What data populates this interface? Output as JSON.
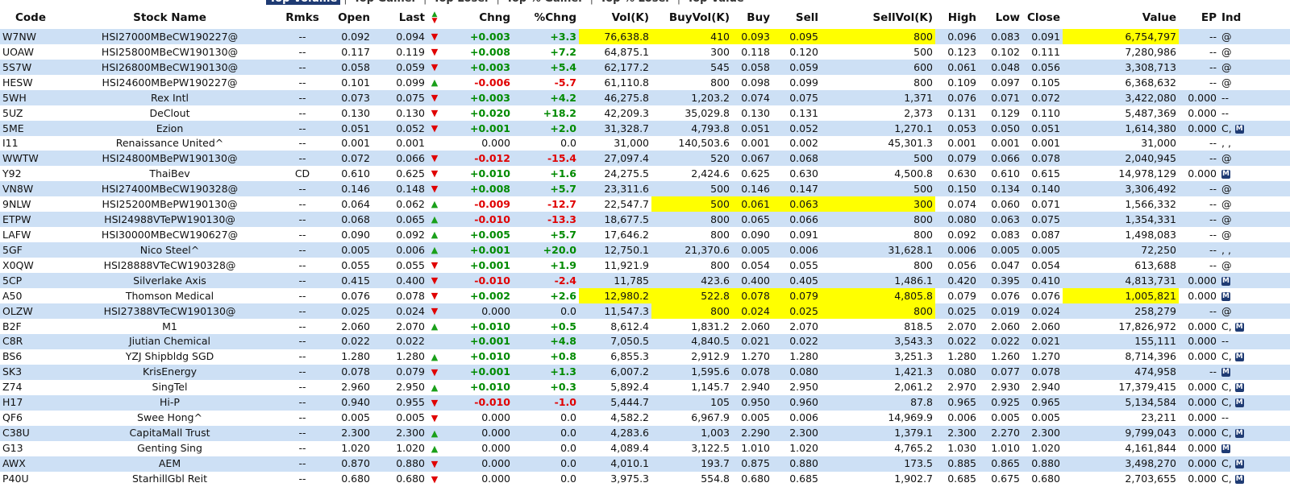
{
  "tabs": [
    "Top Volume",
    "Top Gainer",
    "Top Loser",
    "Top % Gainer",
    "Top % Loser",
    "Top Value"
  ],
  "table": {
    "headers": [
      "Code",
      "Stock Name",
      "Rmks",
      "Open",
      "Last",
      "Chng",
      "%Chng",
      "Vol(K)",
      "BuyVol(K)",
      "Buy",
      "Sell",
      "SellVol(K)",
      "High",
      "Low",
      "Close",
      "Value",
      "EP",
      "Ind"
    ],
    "rows": [
      [
        "W7NW",
        "HSI27000MBeCW190227@",
        "--",
        "0.092",
        "0.094",
        "+0.003",
        "+3.3",
        "76,638.8",
        "410",
        "0.093",
        "0.095",
        "800",
        "0.096",
        "0.083",
        "0.091",
        "6,754,797",
        "--",
        "@"
      ],
      [
        "UOAW",
        "HSI25800MBeCW190130@",
        "--",
        "0.117",
        "0.119",
        "+0.008",
        "+7.2",
        "64,875.1",
        "300",
        "0.118",
        "0.120",
        "500",
        "0.123",
        "0.102",
        "0.111",
        "7,280,986",
        "--",
        "@"
      ],
      [
        "5S7W",
        "HSI26800MBeCW190130@",
        "--",
        "0.058",
        "0.059",
        "+0.003",
        "+5.4",
        "62,177.2",
        "545",
        "0.058",
        "0.059",
        "600",
        "0.061",
        "0.048",
        "0.056",
        "3,308,713",
        "--",
        "@"
      ],
      [
        "HESW",
        "HSI24600MBePW190227@",
        "--",
        "0.101",
        "0.099",
        "-0.006",
        "-5.7",
        "61,110.8",
        "800",
        "0.098",
        "0.099",
        "800",
        "0.109",
        "0.097",
        "0.105",
        "6,368,632",
        "--",
        "@"
      ],
      [
        "5WH",
        "Rex Intl",
        "--",
        "0.073",
        "0.075",
        "+0.003",
        "+4.2",
        "46,275.8",
        "1,203.2",
        "0.074",
        "0.075",
        "1,371",
        "0.076",
        "0.071",
        "0.072",
        "3,422,080",
        "0.000",
        "--"
      ],
      [
        "5UZ",
        "DeClout",
        "--",
        "0.130",
        "0.130",
        "+0.020",
        "+18.2",
        "42,209.3",
        "35,029.8",
        "0.130",
        "0.131",
        "2,373",
        "0.131",
        "0.129",
        "0.110",
        "5,487,369",
        "0.000",
        "--"
      ],
      [
        "5ME",
        "Ezion",
        "--",
        "0.051",
        "0.052",
        "+0.001",
        "+2.0",
        "31,328.7",
        "4,793.8",
        "0.051",
        "0.052",
        "1,270.1",
        "0.053",
        "0.050",
        "0.051",
        "1,614,380",
        "0.000",
        "C, M"
      ],
      [
        "I11",
        "Renaissance United^",
        "--",
        "0.001",
        "0.001",
        "0.000",
        "0.0",
        "31,000",
        "140,503.6",
        "0.001",
        "0.002",
        "45,301.3",
        "0.001",
        "0.001",
        "0.001",
        "31,000",
        "--",
        ", ,"
      ],
      [
        "WWTW",
        "HSI24800MBePW190130@",
        "--",
        "0.072",
        "0.066",
        "-0.012",
        "-15.4",
        "27,097.4",
        "520",
        "0.067",
        "0.068",
        "500",
        "0.079",
        "0.066",
        "0.078",
        "2,040,945",
        "--",
        "@"
      ],
      [
        "Y92",
        "ThaiBev",
        "CD",
        "0.610",
        "0.625",
        "+0.010",
        "+1.6",
        "24,275.5",
        "2,424.6",
        "0.625",
        "0.630",
        "4,500.8",
        "0.630",
        "0.610",
        "0.615",
        "14,978,129",
        "0.000",
        "M"
      ],
      [
        "VN8W",
        "HSI27400MBeCW190328@",
        "--",
        "0.146",
        "0.148",
        "+0.008",
        "+5.7",
        "23,311.6",
        "500",
        "0.146",
        "0.147",
        "500",
        "0.150",
        "0.134",
        "0.140",
        "3,306,492",
        "--",
        "@"
      ],
      [
        "9NLW",
        "HSI25200MBePW190130@",
        "--",
        "0.064",
        "0.062",
        "-0.009",
        "-12.7",
        "22,547.7",
        "500",
        "0.061",
        "0.063",
        "300",
        "0.074",
        "0.060",
        "0.071",
        "1,566,332",
        "--",
        "@"
      ],
      [
        "ETPW",
        "HSI24988VTePW190130@",
        "--",
        "0.068",
        "0.065",
        "-0.010",
        "-13.3",
        "18,677.5",
        "800",
        "0.065",
        "0.066",
        "800",
        "0.080",
        "0.063",
        "0.075",
        "1,354,331",
        "--",
        "@"
      ],
      [
        "LAFW",
        "HSI30000MBeCW190627@",
        "--",
        "0.090",
        "0.092",
        "+0.005",
        "+5.7",
        "17,646.2",
        "800",
        "0.090",
        "0.091",
        "800",
        "0.092",
        "0.083",
        "0.087",
        "1,498,083",
        "--",
        "@"
      ],
      [
        "5GF",
        "Nico Steel^",
        "--",
        "0.005",
        "0.006",
        "+0.001",
        "+20.0",
        "12,750.1",
        "21,370.6",
        "0.005",
        "0.006",
        "31,628.1",
        "0.006",
        "0.005",
        "0.005",
        "72,250",
        "--",
        ", ,"
      ],
      [
        "X0QW",
        "HSI28888VTeCW190328@",
        "--",
        "0.055",
        "0.055",
        "+0.001",
        "+1.9",
        "11,921.9",
        "800",
        "0.054",
        "0.055",
        "800",
        "0.056",
        "0.047",
        "0.054",
        "613,688",
        "--",
        "@"
      ],
      [
        "5CP",
        "Silverlake Axis",
        "--",
        "0.415",
        "0.400",
        "-0.010",
        "-2.4",
        "11,785",
        "423.6",
        "0.400",
        "0.405",
        "1,486.1",
        "0.420",
        "0.395",
        "0.410",
        "4,813,731",
        "0.000",
        "M"
      ],
      [
        "A50",
        "Thomson Medical",
        "--",
        "0.076",
        "0.078",
        "+0.002",
        "+2.6",
        "12,980.2",
        "522.8",
        "0.078",
        "0.079",
        "4,805.8",
        "0.079",
        "0.076",
        "0.076",
        "1,005,821",
        "0.000",
        "M"
      ],
      [
        "OLZW",
        "HSI27388VTeCW190130@",
        "--",
        "0.025",
        "0.024",
        "0.000",
        "0.0",
        "11,547.3",
        "800",
        "0.024",
        "0.025",
        "800",
        "0.025",
        "0.019",
        "0.024",
        "258,279",
        "--",
        "@"
      ],
      [
        "B2F",
        "M1",
        "--",
        "2.060",
        "2.070",
        "+0.010",
        "+0.5",
        "8,612.4",
        "1,831.2",
        "2.060",
        "2.070",
        "818.5",
        "2.070",
        "2.060",
        "2.060",
        "17,826,972",
        "0.000",
        "C, M"
      ],
      [
        "C8R",
        "Jiutian Chemical",
        "--",
        "0.022",
        "0.022",
        "+0.001",
        "+4.8",
        "7,050.5",
        "4,840.5",
        "0.021",
        "0.022",
        "3,543.3",
        "0.022",
        "0.022",
        "0.021",
        "155,111",
        "0.000",
        "--"
      ],
      [
        "BS6",
        "YZJ Shipbldg SGD",
        "--",
        "1.280",
        "1.280",
        "+0.010",
        "+0.8",
        "6,855.3",
        "2,912.9",
        "1.270",
        "1.280",
        "3,251.3",
        "1.280",
        "1.260",
        "1.270",
        "8,714,396",
        "0.000",
        "C, M"
      ],
      [
        "SK3",
        "KrisEnergy",
        "--",
        "0.078",
        "0.079",
        "+0.001",
        "+1.3",
        "6,007.2",
        "1,595.6",
        "0.078",
        "0.080",
        "1,421.3",
        "0.080",
        "0.077",
        "0.078",
        "474,958",
        "--",
        "M"
      ],
      [
        "Z74",
        "SingTel",
        "--",
        "2.960",
        "2.950",
        "+0.010",
        "+0.3",
        "5,892.4",
        "1,145.7",
        "2.940",
        "2.950",
        "2,061.2",
        "2.970",
        "2.930",
        "2.940",
        "17,379,415",
        "0.000",
        "C, M"
      ],
      [
        "H17",
        "Hi-P",
        "--",
        "0.940",
        "0.955",
        "-0.010",
        "-1.0",
        "5,444.7",
        "105",
        "0.950",
        "0.960",
        "87.8",
        "0.965",
        "0.925",
        "0.965",
        "5,134,584",
        "0.000",
        "C, M"
      ],
      [
        "QF6",
        "Swee Hong^",
        "--",
        "0.005",
        "0.005",
        "0.000",
        "0.0",
        "4,582.2",
        "6,967.9",
        "0.005",
        "0.006",
        "14,969.9",
        "0.006",
        "0.005",
        "0.005",
        "23,211",
        "0.000",
        "--"
      ],
      [
        "C38U",
        "CapitaMall Trust",
        "--",
        "2.300",
        "2.300",
        "0.000",
        "0.0",
        "4,283.6",
        "1,003",
        "2.290",
        "2.300",
        "1,379.1",
        "2.300",
        "2.270",
        "2.300",
        "9,799,043",
        "0.000",
        "C, M"
      ],
      [
        "G13",
        "Genting Sing",
        "--",
        "1.020",
        "1.020",
        "0.000",
        "0.0",
        "4,089.4",
        "3,122.5",
        "1.010",
        "1.020",
        "4,765.2",
        "1.030",
        "1.010",
        "1.020",
        "4,161,844",
        "0.000",
        "M"
      ],
      [
        "AWX",
        "AEM",
        "--",
        "0.870",
        "0.880",
        "0.000",
        "0.0",
        "4,010.1",
        "193.7",
        "0.875",
        "0.880",
        "173.5",
        "0.885",
        "0.865",
        "0.880",
        "3,498,270",
        "0.000",
        "C, M"
      ],
      [
        "P40U",
        "StarhillGbl Reit",
        "--",
        "0.680",
        "0.680",
        "0.000",
        "0.0",
        "3,975.3",
        "554.8",
        "0.680",
        "0.685",
        "1,902.7",
        "0.685",
        "0.675",
        "0.680",
        "2,703,655",
        "0.000",
        "C, M"
      ]
    ]
  }
}
